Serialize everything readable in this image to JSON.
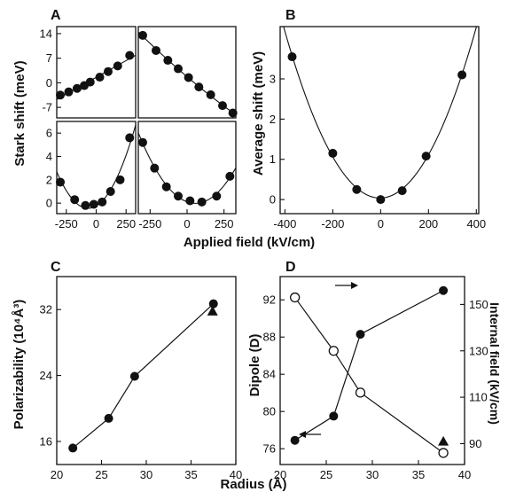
{
  "figure": {
    "panel_labels": [
      "A",
      "B",
      "C",
      "D"
    ],
    "A": {
      "ylabel": "Stark shift (meV)",
      "xlabel": "Applied field (kV/cm)"
    },
    "B": {
      "ylabel": "Average shift (meV)"
    },
    "C": {
      "ylabel": "Polarizability (10⁴Å³)",
      "xlabel": "Radius (Å)"
    },
    "D": {
      "ylabel_left": "Dipole (D)",
      "ylabel_right": "Internal field (kV/cm)"
    }
  },
  "chart_data": [
    {
      "id": "A-top-left",
      "type": "scatter",
      "xlim": [
        -330,
        330
      ],
      "ylim": [
        -10,
        16
      ],
      "yticks": [
        -7,
        0,
        7,
        14
      ],
      "xticks": [],
      "series": [
        {
          "x": [
            -300,
            -230,
            -160,
            -100,
            -50,
            30,
            100,
            180,
            280
          ],
          "y": [
            -3.5,
            -2.6,
            -1.6,
            -0.8,
            0.2,
            1.6,
            3.2,
            4.8,
            7.8
          ],
          "style": "filled-circle",
          "fit": "linear"
        }
      ]
    },
    {
      "id": "A-top-right",
      "type": "scatter",
      "xlim": [
        -330,
        330
      ],
      "ylim": [
        -10,
        16
      ],
      "yticks": [],
      "xticks": [],
      "series": [
        {
          "x": [
            -300,
            -210,
            -130,
            -60,
            10,
            80,
            160,
            240,
            310
          ],
          "y": [
            13.5,
            9.2,
            6.4,
            4.0,
            1.5,
            -1.2,
            -3.4,
            -6.5,
            -8.6
          ],
          "style": "filled-circle",
          "fit": "quadratic"
        }
      ]
    },
    {
      "id": "A-bottom-left",
      "type": "scatter",
      "xlim": [
        -330,
        330
      ],
      "ylim": [
        -0.9,
        7
      ],
      "yticks": [
        0,
        2,
        4,
        6
      ],
      "xticks": [
        -250,
        0,
        250
      ],
      "series": [
        {
          "x": [
            -300,
            -180,
            -90,
            -20,
            50,
            120,
            200,
            280
          ],
          "y": [
            1.8,
            0.3,
            -0.2,
            -0.1,
            0.1,
            1.0,
            2.0,
            5.6
          ],
          "style": "filled-circle",
          "fit": "quadratic"
        }
      ]
    },
    {
      "id": "A-bottom-right",
      "type": "scatter",
      "xlim": [
        -330,
        330
      ],
      "ylim": [
        -0.9,
        7
      ],
      "yticks": [],
      "xticks": [
        -250,
        0,
        250
      ],
      "series": [
        {
          "x": [
            -300,
            -220,
            -140,
            -60,
            20,
            100,
            200,
            290
          ],
          "y": [
            5.2,
            3.0,
            1.4,
            0.6,
            0.2,
            0.1,
            0.6,
            2.3
          ],
          "style": "filled-circle",
          "fit": "quadratic"
        }
      ]
    },
    {
      "id": "B",
      "type": "scatter",
      "xlim": [
        -420,
        410
      ],
      "ylim": [
        -0.35,
        4.3
      ],
      "xticks": [
        -400,
        -200,
        0,
        200,
        400
      ],
      "yticks": [
        0,
        1,
        2,
        3
      ],
      "series": [
        {
          "x": [
            -370,
            -200,
            -100,
            0,
            90,
            190,
            340
          ],
          "y": [
            3.55,
            1.15,
            0.25,
            0.0,
            0.22,
            1.08,
            3.1
          ],
          "style": "filled-circle",
          "fit": "quadratic"
        }
      ]
    },
    {
      "id": "C",
      "type": "line",
      "xlim": [
        20,
        40
      ],
      "ylim": [
        13.2,
        36
      ],
      "xticks": [
        20,
        25,
        30,
        35,
        40
      ],
      "yticks": [
        16,
        24,
        32
      ],
      "series": [
        {
          "x": [
            21.8,
            25.8,
            28.7,
            37.5
          ],
          "y": [
            15.2,
            18.8,
            23.9,
            32.7
          ],
          "style": "filled-circle"
        },
        {
          "x": [
            37.4
          ],
          "y": [
            31.8
          ],
          "style": "filled-triangle"
        }
      ]
    },
    {
      "id": "D",
      "type": "line",
      "xlim": [
        20,
        40
      ],
      "ylim": [
        74.3,
        94.5
      ],
      "y2lim": [
        81,
        162
      ],
      "xticks": [
        20,
        25,
        30,
        35,
        40
      ],
      "yticks": [
        76,
        80,
        84,
        88,
        92
      ],
      "y2ticks": [
        90,
        110,
        130,
        150
      ],
      "series": [
        {
          "axis": "left",
          "x": [
            21.6,
            25.8,
            28.7,
            37.7
          ],
          "y": [
            76.9,
            79.5,
            88.3,
            93.0
          ],
          "style": "filled-circle"
        },
        {
          "axis": "right",
          "x": [
            21.6,
            25.8,
            28.7,
            37.7
          ],
          "y": [
            153,
            130,
            112,
            86
          ],
          "style": "open-circle"
        },
        {
          "axis": "right",
          "x": [
            37.7
          ],
          "y": [
            91
          ],
          "style": "filled-triangle"
        }
      ]
    }
  ]
}
